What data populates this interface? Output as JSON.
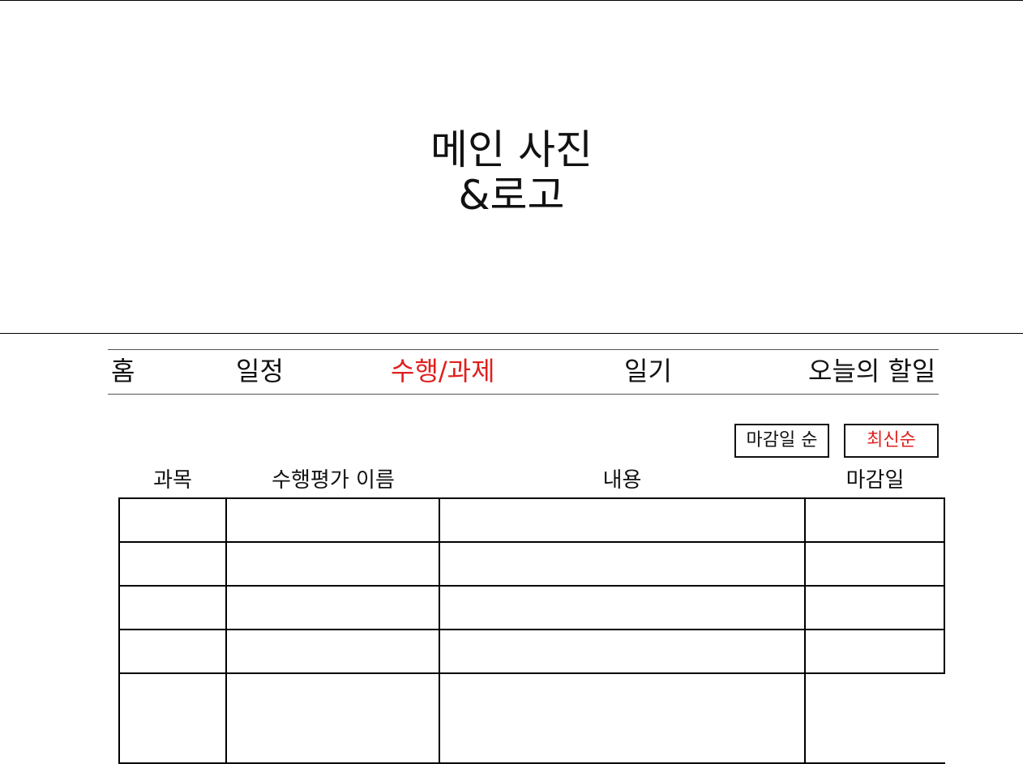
{
  "hero": {
    "line1": "메인 사진",
    "line2": "&로고"
  },
  "nav": {
    "items": [
      {
        "label": "홈",
        "active": false
      },
      {
        "label": "일정",
        "active": false
      },
      {
        "label": "수행/과제",
        "active": true
      },
      {
        "label": "일기",
        "active": false
      },
      {
        "label": "오늘의 할일",
        "active": false
      }
    ]
  },
  "sort": {
    "deadline_label": "마감일 순",
    "latest_label": "최신순",
    "active": "latest"
  },
  "table": {
    "columns": [
      "과목",
      "수행평가 이름",
      "내용",
      "마감일"
    ],
    "rows": [
      [
        "",
        "",
        "",
        ""
      ],
      [
        "",
        "",
        "",
        ""
      ],
      [
        "",
        "",
        "",
        ""
      ],
      [
        "",
        "",
        "",
        ""
      ],
      [
        "",
        "",
        "",
        ""
      ]
    ]
  },
  "colors": {
    "accent": "#e0201e",
    "text": "#111111",
    "border": "#000000"
  }
}
